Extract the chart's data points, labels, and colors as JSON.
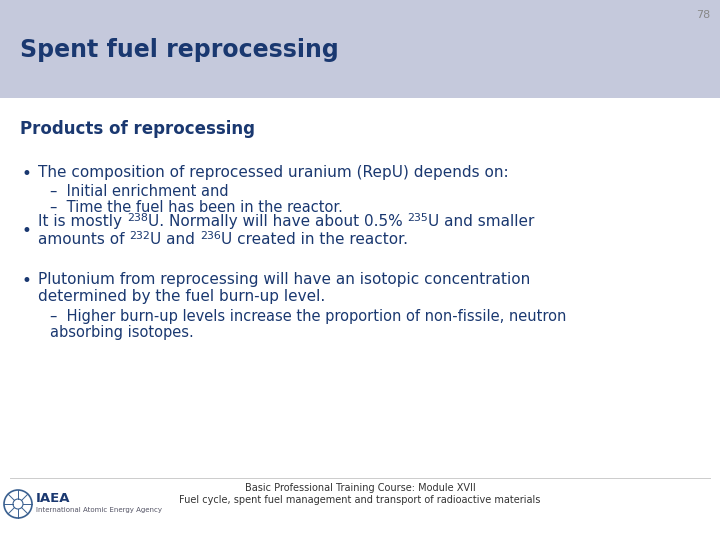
{
  "slide_number": "78",
  "title": "Spent fuel reprocessing",
  "subtitle": "Products of reprocessing",
  "header_bg": "#c5c9dc",
  "body_bg": "#ffffff",
  "title_color": "#1a3870",
  "subtitle_color": "#1a3870",
  "slide_num_color": "#888888",
  "bullet_color": "#1a3870",
  "bullet1": "The composition of reprocessed uranium (RepU) depends on:",
  "sub1a": "Initial enrichment and",
  "sub1b": "Time the fuel has been in the reactor.",
  "bullet2_line1_segs": [
    [
      "It is mostly ",
      false
    ],
    [
      "238",
      true
    ],
    [
      "U. Normally will have about 0.5% ",
      false
    ],
    [
      "235",
      true
    ],
    [
      "U and smaller",
      false
    ]
  ],
  "bullet2_line2_segs": [
    [
      "amounts of ",
      false
    ],
    [
      "232",
      true
    ],
    [
      "U and ",
      false
    ],
    [
      "236",
      true
    ],
    [
      "U created in the reactor.",
      false
    ]
  ],
  "bullet3_line1": "Plutonium from reprocessing will have an isotopic concentration",
  "bullet3_line2": "determined by the fuel burn-up level.",
  "sub3_line1": "Higher burn-up levels increase the proportion of non-fissile, neutron",
  "sub3_line2": "absorbing isotopes.",
  "footer_line1": "Basic Professional Training Course: Module XVII",
  "footer_line2": "Fuel cycle, spent fuel management and transport of radioactive materials",
  "font_family": "DejaVu Sans",
  "title_fontsize": 17,
  "subtitle_fontsize": 12,
  "body_fontsize": 11,
  "sub_fontsize": 10.5,
  "footer_fontsize": 7
}
